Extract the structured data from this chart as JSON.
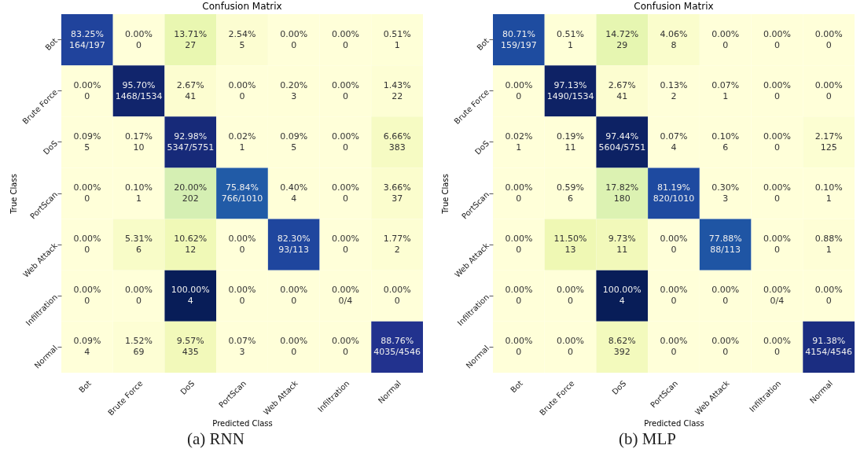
{
  "chart_data": [
    {
      "type": "heatmap",
      "title": "Confusion Matrix",
      "xlabel": "Predicted Class",
      "ylabel": "True Class",
      "categories": [
        "Bot",
        "Brute Force",
        "DoS",
        "PortScan",
        "Web Attack",
        "Infiltration",
        "Normal"
      ],
      "y_categories": [
        "Bot",
        "Brute Force",
        "DoS",
        "PortScan",
        "Web Attack",
        "Infiltration",
        "Normal"
      ],
      "cells": [
        [
          83.25,
          0,
          13.71,
          2.54,
          0,
          0,
          0.51
        ],
        [
          0,
          95.7,
          2.67,
          0,
          0.2,
          0,
          1.43
        ],
        [
          0.09,
          0.17,
          92.98,
          0.02,
          0.09,
          0,
          6.66
        ],
        [
          0,
          0.1,
          20.0,
          75.84,
          0.4,
          0,
          3.66
        ],
        [
          0,
          5.31,
          10.62,
          0,
          82.3,
          0,
          1.77
        ],
        [
          0,
          0,
          100,
          0,
          0,
          0,
          0
        ],
        [
          0.09,
          1.52,
          9.57,
          0.07,
          0,
          0,
          88.76
        ]
      ],
      "cell_labels": [
        [
          "83.25%",
          "0.00%",
          "13.71%",
          "2.54%",
          "0.00%",
          "0.00%",
          "0.51%"
        ],
        [
          "0.00%",
          "95.70%",
          "2.67%",
          "0.00%",
          "0.20%",
          "0.00%",
          "1.43%"
        ],
        [
          "0.09%",
          "0.17%",
          "92.98%",
          "0.02%",
          "0.09%",
          "0.00%",
          "6.66%"
        ],
        [
          "0.00%",
          "0.10%",
          "20.00%",
          "75.84%",
          "0.40%",
          "0.00%",
          "3.66%"
        ],
        [
          "0.00%",
          "5.31%",
          "10.62%",
          "0.00%",
          "82.30%",
          "0.00%",
          "1.77%"
        ],
        [
          "0.00%",
          "0.00%",
          "100.00%",
          "0.00%",
          "0.00%",
          "0.00%",
          "0.00%"
        ],
        [
          "0.09%",
          "1.52%",
          "9.57%",
          "0.07%",
          "0.00%",
          "0.00%",
          "88.76%"
        ]
      ],
      "annotations": [
        "(a) RNN",
        "164/197",
        "0",
        "27",
        "5",
        "0",
        "0",
        "1",
        "0",
        "1468/1534",
        "41",
        "0",
        "3",
        "0",
        "22",
        "5",
        "10",
        "5347/5751",
        "1",
        "5",
        "0",
        "383",
        "0",
        "1",
        "202",
        "766/1010",
        "4",
        "0",
        "37",
        "0",
        "6",
        "12",
        "0",
        "93/113",
        "0",
        "2",
        "0",
        "0",
        "4",
        "0",
        "0",
        "0/4",
        "0",
        "4",
        "69",
        "435",
        "3",
        "0",
        "0",
        "4035/4546"
      ]
    },
    {
      "type": "heatmap",
      "title": "Confusion Matrix",
      "xlabel": "Predicted Class",
      "ylabel": "True Class",
      "categories": [
        "Bot",
        "Brute Force",
        "DoS",
        "PortScan",
        "Web Attack",
        "Infiltration",
        "Normal"
      ],
      "y_categories": [
        "Bot",
        "Brute Force",
        "DoS",
        "PortScan",
        "Web Attack",
        "Infiltration",
        "Normal"
      ],
      "cells": [
        [
          80.71,
          0.51,
          14.72,
          4.06,
          0,
          0,
          0
        ],
        [
          0,
          97.13,
          2.67,
          0.13,
          0.07,
          0,
          0
        ],
        [
          0.02,
          0.19,
          97.44,
          0.07,
          0.1,
          0,
          2.17
        ],
        [
          0,
          0.59,
          17.82,
          81.19,
          0.3,
          0,
          0.1
        ],
        [
          0,
          11.5,
          9.73,
          0,
          77.88,
          0,
          0.88
        ],
        [
          0,
          0,
          100,
          0,
          0,
          0,
          0
        ],
        [
          0,
          0,
          8.62,
          0,
          0,
          0,
          91.38
        ]
      ],
      "cell_labels": [
        [
          "80.71%",
          "0.51%",
          "14.72%",
          "4.06%",
          "0.00%",
          "0.00%",
          "0.00%"
        ],
        [
          "0.00%",
          "97.13%",
          "2.67%",
          "0.13%",
          "0.07%",
          "0.00%",
          "0.00%"
        ],
        [
          "0.02%",
          "0.19%",
          "97.44%",
          "0.07%",
          "0.10%",
          "0.00%",
          "2.17%"
        ],
        [
          "0.00%",
          "0.59%",
          "17.82%",
          "81.19%",
          "0.30%",
          "0.00%",
          "0.10%"
        ],
        [
          "0.00%",
          "11.50%",
          "9.73%",
          "0.00%",
          "77.88%",
          "0.00%",
          "0.88%"
        ],
        [
          "0.00%",
          "0.00%",
          "100.00%",
          "0.00%",
          "0.00%",
          "0.00%",
          "0.00%"
        ],
        [
          "0.00%",
          "0.00%",
          "8.62%",
          "0.00%",
          "0.00%",
          "0.00%",
          "91.38%"
        ]
      ],
      "annotations": [
        "(b) MLP",
        "159/197",
        "1",
        "29",
        "8",
        "0",
        "0",
        "0",
        "0",
        "1490/1534",
        "41",
        "2",
        "1",
        "0",
        "0",
        "1",
        "11",
        "5604/5751",
        "4",
        "6",
        "0",
        "125",
        "0",
        "6",
        "180",
        "820/1010",
        "3",
        "0",
        "1",
        "0",
        "13",
        "11",
        "0",
        "88/113",
        "0",
        "1",
        "0",
        "0",
        "4",
        "0",
        "0",
        "0/4",
        "0",
        "0",
        "0",
        "392",
        "0",
        "0",
        "0",
        "4154/4546"
      ]
    }
  ]
}
